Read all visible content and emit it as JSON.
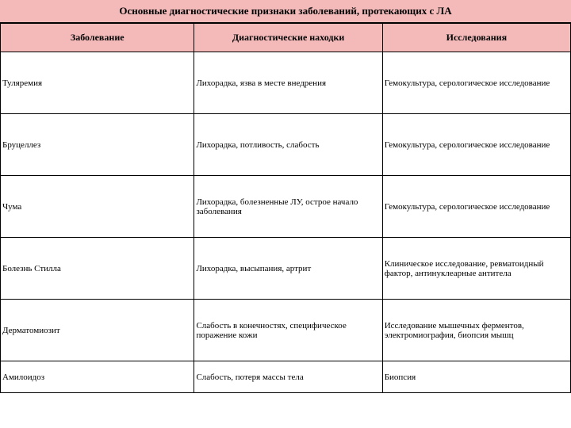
{
  "title": "Основные диагностические признаки заболеваний, протекающих с ЛА",
  "columns": {
    "disease": "Заболевание",
    "findings": "Диагностические находки",
    "tests": "Исследования"
  },
  "rows": [
    {
      "disease": "Туляремия",
      "findings": "Лихорадка, язва в месте внедрения",
      "tests": "Гемокультура, серологическое исследование"
    },
    {
      "disease": "Бруцеллез",
      "findings": "Лихорадка, потливость, слабость",
      "tests": "Гемокультура, серологическое исследование"
    },
    {
      "disease": "Чума",
      "findings": "Лихорадка, болезненные ЛУ, острое начало заболевания",
      "tests": "Гемокультура, серологическое исследование"
    },
    {
      "disease": "Болезнь Стилла",
      "findings": "Лихорадка, высыпания, артрит",
      "tests": "Клиническое исследование, ревматоидный фактор, антинуклеарные антитела"
    },
    {
      "disease": "Дерматомиозит",
      "findings": "Слабость в конечностях, специфическое поражение кожи",
      "tests": "Исследование мышечных ферментов, электромиография, биопсия мышц"
    },
    {
      "disease": "Амилоидоз",
      "findings": "Слабость, потеря массы тела",
      "tests": "Биопсия"
    }
  ],
  "colors": {
    "header_bg": "#f4baba",
    "border": "#000000",
    "text": "#000000"
  }
}
